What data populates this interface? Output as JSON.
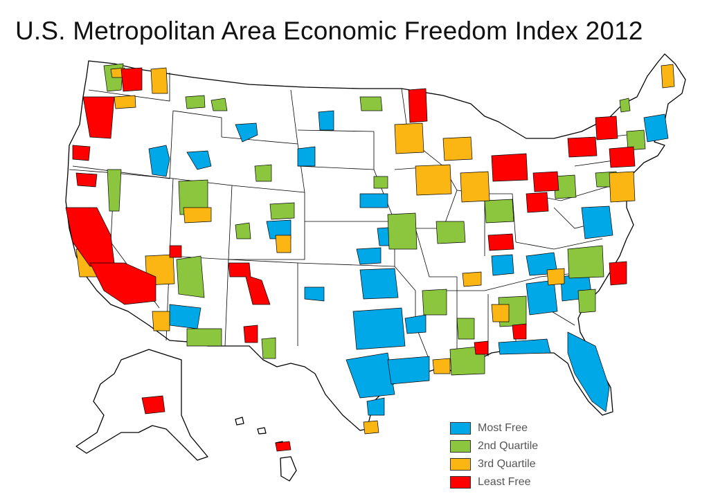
{
  "title": "U.S. Metropolitan Area Economic Freedom Index 2012",
  "colors": {
    "most_free": "#00a8e8",
    "second_quartile": "#8cc63f",
    "third_quartile": "#fbb614",
    "least_free": "#ff0000",
    "land": "#ffffff",
    "border": "#000000"
  },
  "legend": {
    "items": [
      {
        "label": "Most Free",
        "color": "#00a8e8"
      },
      {
        "label": "2nd Quartile",
        "color": "#8cc63f"
      },
      {
        "label": "3rd Quartile",
        "color": "#fbb614"
      },
      {
        "label": "Least Free",
        "color": "#ff0000"
      }
    ]
  }
}
